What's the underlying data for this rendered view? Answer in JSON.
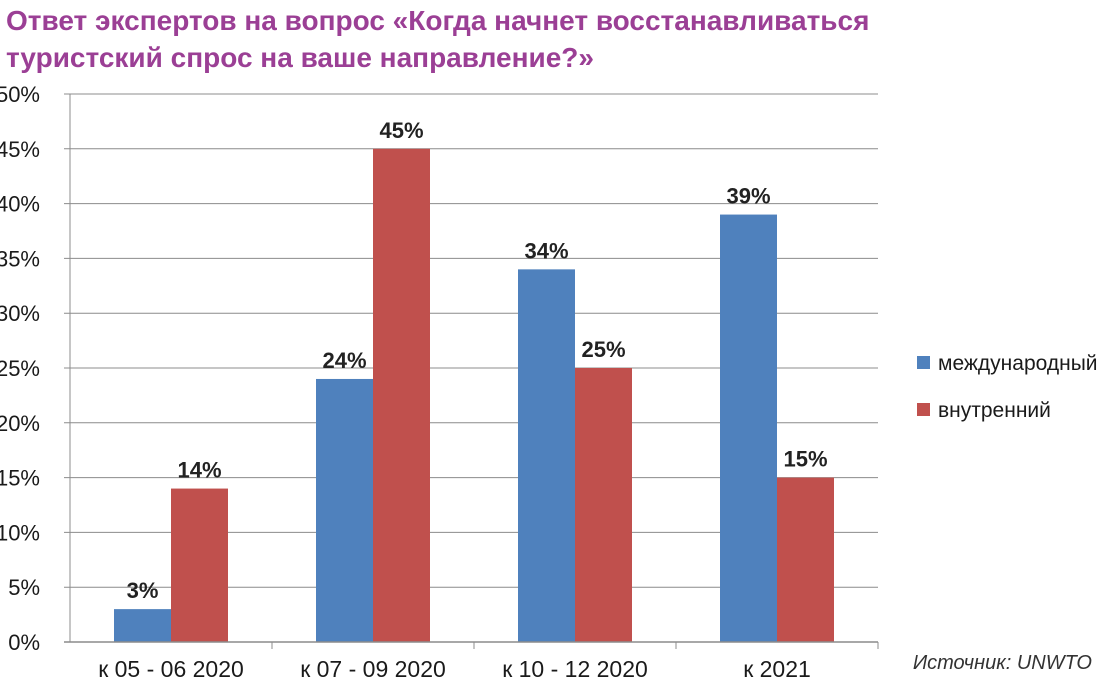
{
  "title_lines": [
    "Ответ экспертов на вопрос «Когда начнет восстанавливаться",
    "туристский спрос на ваше направление?»"
  ],
  "source": "Источник: UNWTO",
  "colors": {
    "title": "#9b3f95",
    "international": "#4f81bd",
    "domestic": "#c0504d",
    "grid": "#8c8c8c",
    "text": "#1a1a1a"
  },
  "chart_data": {
    "type": "bar",
    "categories": [
      "к 05 - 06 2020",
      "к 07 - 09 2020",
      "к 10 - 12 2020",
      "к 2021"
    ],
    "series": [
      {
        "name": "международный",
        "values": [
          3,
          24,
          34,
          39
        ],
        "labels": [
          "3%",
          "24%",
          "34%",
          "39%"
        ]
      },
      {
        "name": "внутренний",
        "values": [
          14,
          45,
          25,
          15
        ],
        "labels": [
          "14%",
          "45%",
          "25%",
          "15%"
        ]
      }
    ],
    "y_ticks": [
      "0%",
      "5%",
      "10%",
      "15%",
      "20%",
      "25%",
      "30%",
      "35%",
      "40%",
      "45%",
      "50%"
    ],
    "ylim": [
      0,
      50
    ],
    "grid": true,
    "legend_position": "right"
  }
}
